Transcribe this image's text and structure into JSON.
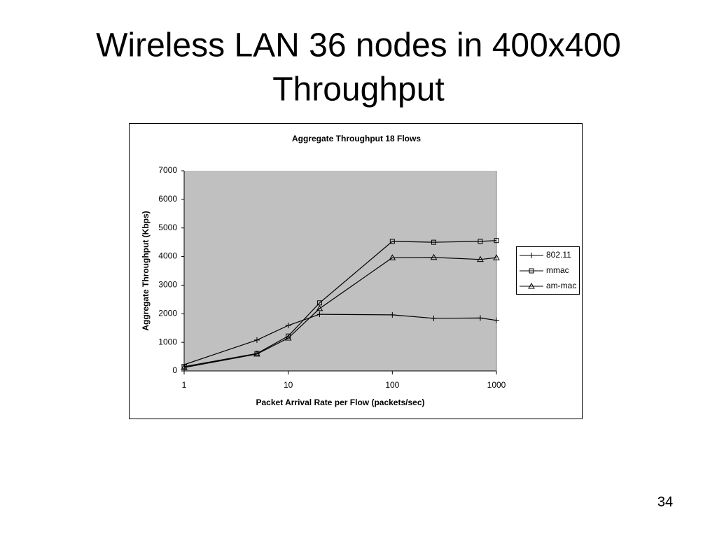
{
  "slide": {
    "title_lines": [
      "Wireless LAN 36 nodes in 400x400",
      "Throughput"
    ],
    "page_number": 34
  },
  "chart_data": {
    "type": "line",
    "title": "Aggregate Throughput 18 Flows",
    "x_label": "Packet Arrival Rate per Flow (packets/sec)",
    "y_label": "Aggregate Throughput (Kbps)",
    "x_scale": "log",
    "x": [
      1,
      5,
      10,
      20,
      100,
      250,
      700,
      1000
    ],
    "series": [
      {
        "name": "802.11",
        "color": "#000000",
        "marker": "plus",
        "values": [
          220,
          1080,
          1590,
          1980,
          1960,
          1840,
          1850,
          1770
        ]
      },
      {
        "name": "mmac",
        "color": "#000000",
        "marker": "square",
        "values": [
          150,
          610,
          1220,
          2380,
          4530,
          4500,
          4530,
          4560
        ]
      },
      {
        "name": "am-mac",
        "color": "#000000",
        "marker": "triangle",
        "values": [
          120,
          590,
          1150,
          2180,
          3960,
          3970,
          3900,
          3960
        ]
      }
    ],
    "xlim": [
      1,
      1000
    ],
    "xticks": [
      1,
      10,
      100,
      1000
    ],
    "ylim": [
      0,
      7000
    ],
    "yticks": [
      0,
      1000,
      2000,
      3000,
      4000,
      5000,
      6000,
      7000
    ],
    "grid": false,
    "plot_background": "#c0c0c0",
    "legend": "right"
  }
}
